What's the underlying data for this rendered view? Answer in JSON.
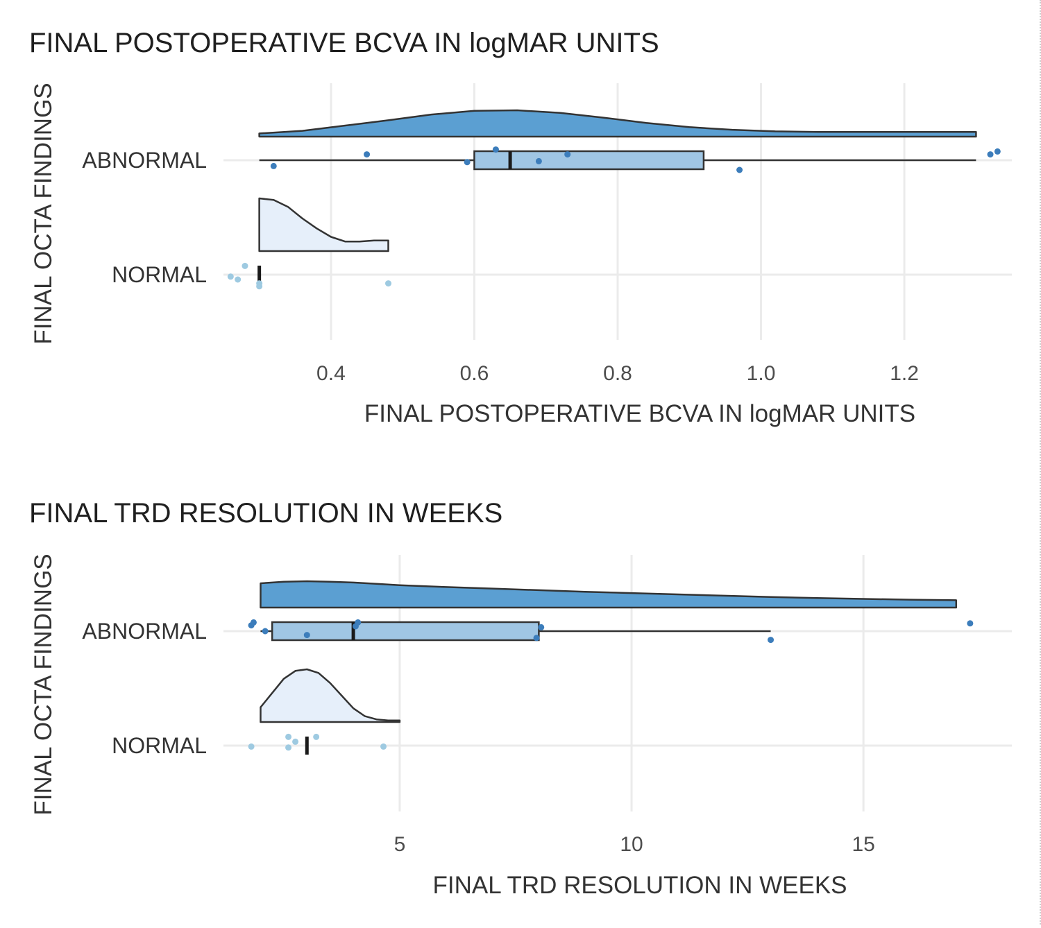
{
  "chart_data": [
    {
      "type": "raincloud",
      "title": "FINAL POSTOPERATIVE BCVA IN logMAR UNITS",
      "xlabel": "FINAL POSTOPERATIVE BCVA IN logMAR UNITS",
      "ylabel": "FINAL OCTA FINDINGS",
      "xlim": [
        0.25,
        1.35
      ],
      "x_ticks": [
        0.4,
        0.6,
        0.8,
        1.0,
        1.2
      ],
      "x_tick_labels": [
        "0.4",
        "0.6",
        "0.8",
        "1.0",
        "1.2"
      ],
      "grid": true,
      "categories": [
        "ABNORMAL",
        "NORMAL"
      ],
      "groups": [
        {
          "name": "ABNORMAL",
          "color": "#3c7dbb",
          "fill_color": "#5b9fd2",
          "box_fill": "#a0c6e4",
          "box": {
            "whisker_low": 0.3,
            "q1": 0.6,
            "median": 0.65,
            "q3": 0.92,
            "whisker_high": 1.3
          },
          "density": {
            "x": [
              0.3,
              0.36,
              0.42,
              0.48,
              0.54,
              0.6,
              0.66,
              0.72,
              0.78,
              0.84,
              0.9,
              0.96,
              1.02,
              1.08,
              1.14,
              1.2,
              1.26,
              1.3
            ],
            "y": [
              0.12,
              0.22,
              0.42,
              0.62,
              0.84,
              0.98,
              1.0,
              0.9,
              0.72,
              0.52,
              0.36,
              0.26,
              0.2,
              0.18,
              0.18,
              0.18,
              0.18,
              0.18
            ]
          },
          "points": [
            {
              "x": 0.32,
              "jitter": -0.3
            },
            {
              "x": 0.45,
              "jitter": 0.3
            },
            {
              "x": 0.59,
              "jitter": -0.1
            },
            {
              "x": 0.63,
              "jitter": 0.55
            },
            {
              "x": 0.69,
              "jitter": -0.05
            },
            {
              "x": 0.73,
              "jitter": 0.3
            },
            {
              "x": 0.97,
              "jitter": -0.5
            },
            {
              "x": 1.32,
              "jitter": 0.3
            },
            {
              "x": 1.33,
              "jitter": 0.45
            }
          ]
        },
        {
          "name": "NORMAL",
          "color": "#9ecae1",
          "fill_color": "#e6effa",
          "box_fill": "#e6effa",
          "box": {
            "whisker_low": 0.3,
            "q1": 0.3,
            "median": 0.3,
            "q3": 0.3,
            "whisker_high": 0.3
          },
          "density": {
            "x": [
              0.3,
              0.32,
              0.34,
              0.36,
              0.38,
              0.4,
              0.42,
              0.44,
              0.46,
              0.48
            ],
            "y": [
              1.0,
              0.97,
              0.84,
              0.62,
              0.43,
              0.27,
              0.18,
              0.18,
              0.2,
              0.2
            ]
          },
          "points": [
            {
              "x": 0.26,
              "jitter": -0.1
            },
            {
              "x": 0.27,
              "jitter": -0.25
            },
            {
              "x": 0.28,
              "jitter": 0.45
            },
            {
              "x": 0.3,
              "jitter": -0.45
            },
            {
              "x": 0.3,
              "jitter": -0.6
            },
            {
              "x": 0.48,
              "jitter": -0.45
            }
          ]
        }
      ]
    },
    {
      "type": "raincloud",
      "title": "FINAL TRD RESOLUTION IN WEEKS",
      "xlabel": "FINAL TRD RESOLUTION IN WEEKS",
      "ylabel": "FINAL OCTA FINDINGS",
      "xlim": [
        1.2,
        18.2
      ],
      "x_ticks": [
        5,
        10,
        15
      ],
      "x_tick_labels": [
        "5",
        "10",
        "15"
      ],
      "grid": true,
      "categories": [
        "ABNORMAL",
        "NORMAL"
      ],
      "groups": [
        {
          "name": "ABNORMAL",
          "color": "#3c7dbb",
          "fill_color": "#5b9fd2",
          "box_fill": "#a0c6e4",
          "box": {
            "whisker_low": 2,
            "q1": 2.25,
            "median": 4,
            "q3": 8,
            "whisker_high": 13
          },
          "density": {
            "x": [
              2,
              2.5,
              3,
              3.5,
              4,
              4.5,
              5,
              6,
              7,
              8,
              9,
              10,
              11,
              12,
              13,
              14,
              15,
              16,
              17
            ],
            "y": [
              0.92,
              0.98,
              1.0,
              0.98,
              0.95,
              0.9,
              0.85,
              0.78,
              0.72,
              0.66,
              0.6,
              0.55,
              0.5,
              0.45,
              0.4,
              0.36,
              0.33,
              0.3,
              0.28
            ]
          },
          "points": [
            {
              "x": 1.8,
              "jitter": 0.3
            },
            {
              "x": 1.85,
              "jitter": 0.45
            },
            {
              "x": 2.1,
              "jitter": 0.0
            },
            {
              "x": 3,
              "jitter": -0.2
            },
            {
              "x": 4.05,
              "jitter": 0.25
            },
            {
              "x": 4.1,
              "jitter": 0.45
            },
            {
              "x": 7.95,
              "jitter": -0.35
            },
            {
              "x": 8.05,
              "jitter": 0.2
            },
            {
              "x": 13,
              "jitter": -0.45
            },
            {
              "x": 17.3,
              "jitter": 0.4
            }
          ]
        },
        {
          "name": "NORMAL",
          "color": "#9ecae1",
          "fill_color": "#e6effa",
          "box_fill": "#e6effa",
          "box": {
            "whisker_low": 3,
            "q1": 3,
            "median": 3,
            "q3": 3,
            "whisker_high": 3
          },
          "density": {
            "x": [
              2,
              2.25,
              2.5,
              2.75,
              3,
              3.25,
              3.5,
              3.75,
              4,
              4.25,
              4.5,
              4.75,
              5
            ],
            "y": [
              0.28,
              0.55,
              0.82,
              0.97,
              1.0,
              0.93,
              0.74,
              0.5,
              0.26,
              0.11,
              0.05,
              0.03,
              0.03
            ]
          },
          "points": [
            {
              "x": 1.8,
              "jitter": -0.05
            },
            {
              "x": 2.6,
              "jitter": 0.45
            },
            {
              "x": 2.6,
              "jitter": -0.1
            },
            {
              "x": 2.75,
              "jitter": 0.2
            },
            {
              "x": 3.2,
              "jitter": 0.45
            },
            {
              "x": 4.65,
              "jitter": -0.05
            }
          ]
        }
      ]
    }
  ]
}
